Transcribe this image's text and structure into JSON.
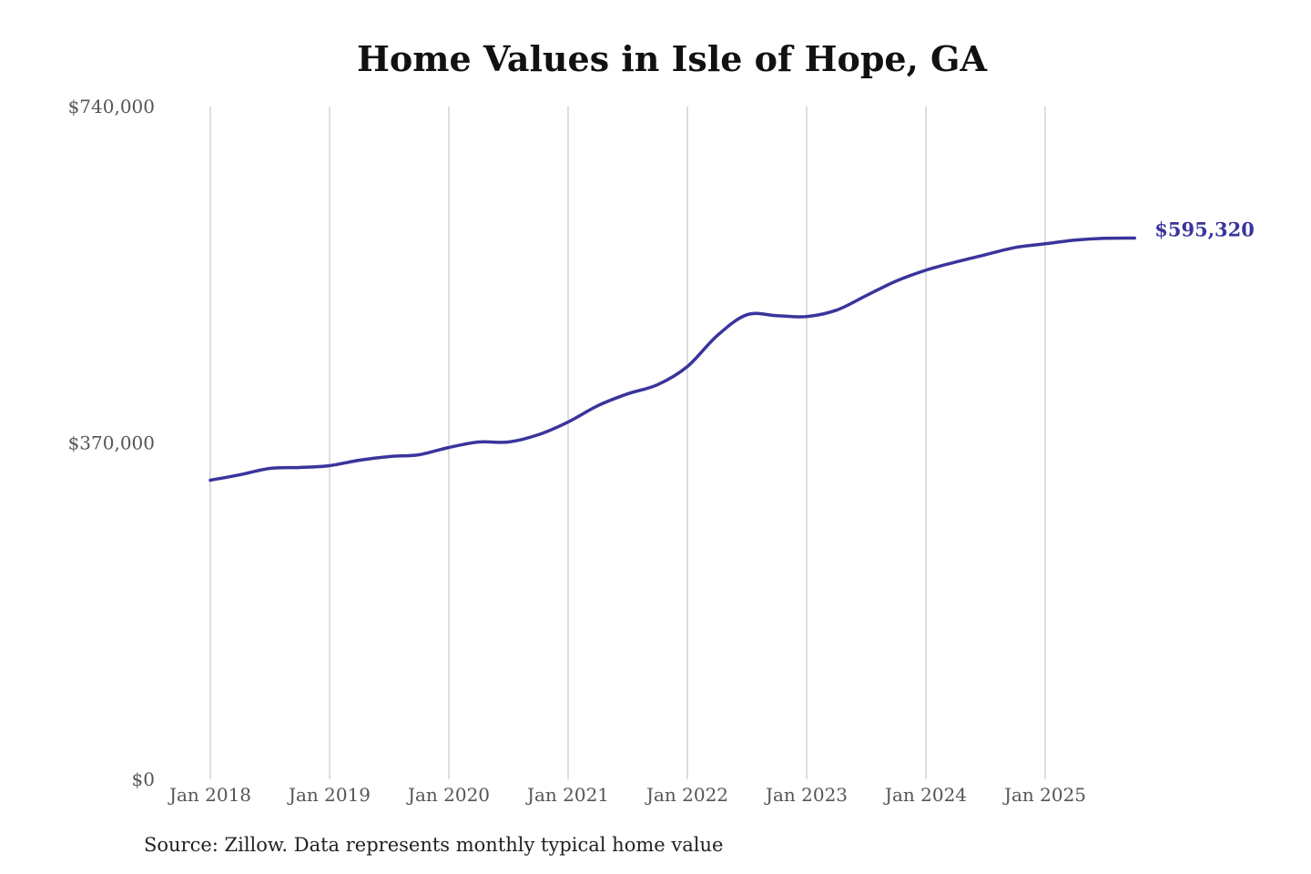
{
  "chart_data": {
    "type": "line",
    "title": "Home Values in Isle of Hope, GA",
    "source": "Source: Zillow. Data represents monthly typical home value",
    "xlabel": "",
    "ylabel": "",
    "ylim": [
      0,
      740000
    ],
    "y_ticks": [
      {
        "value": 0,
        "label": "$0"
      },
      {
        "value": 370000,
        "label": "$370,000"
      },
      {
        "value": 740000,
        "label": "$740,000"
      }
    ],
    "x_ticks": [
      "Jan 2018",
      "Jan 2019",
      "Jan 2020",
      "Jan 2021",
      "Jan 2022",
      "Jan 2023",
      "Jan 2024",
      "Jan 2025"
    ],
    "grid": "vertical",
    "line_color": "#3a349c",
    "end_label": "$595,320",
    "x": [
      "2018-01",
      "2018-04",
      "2018-07",
      "2018-10",
      "2019-01",
      "2019-04",
      "2019-07",
      "2019-10",
      "2020-01",
      "2020-04",
      "2020-07",
      "2020-10",
      "2021-01",
      "2021-04",
      "2021-07",
      "2021-10",
      "2022-01",
      "2022-04",
      "2022-07",
      "2022-10",
      "2023-01",
      "2023-04",
      "2023-07",
      "2023-10",
      "2024-01",
      "2024-04",
      "2024-07",
      "2024-10",
      "2025-01",
      "2025-04",
      "2025-07",
      "2025-10"
    ],
    "values": [
      329000,
      335000,
      342000,
      343000,
      345000,
      351000,
      355000,
      357000,
      365000,
      371000,
      371000,
      379000,
      393000,
      411000,
      424000,
      434000,
      454000,
      488000,
      511000,
      510000,
      509000,
      516000,
      532000,
      548000,
      560000,
      569000,
      577000,
      585000,
      589000,
      593000,
      595000,
      595320
    ]
  }
}
